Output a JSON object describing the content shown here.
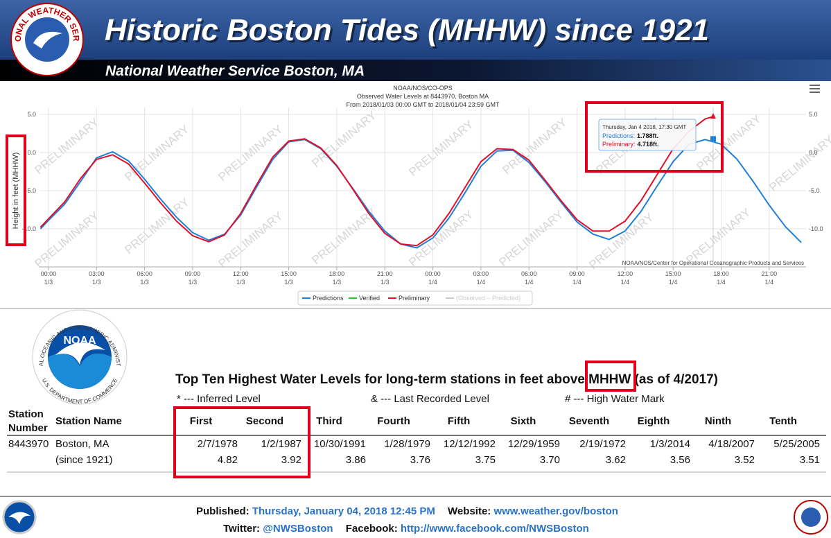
{
  "header": {
    "title": "Historic Boston Tides (MHHW) since 1921",
    "subtitle": "National Weather Service Boston, MA",
    "logo_text": "NATIONAL WEATHER SERVICE"
  },
  "chart_data": {
    "type": "line",
    "title": "NOAA/NOS/CO-OPS",
    "subtitle": [
      "Observed Water Levels at 8443970, Boston MA",
      "From 2018/01/03 00:00 GMT to 2018/01/04 23:59 GMT"
    ],
    "ylabel": "Height in feet (MHHW)",
    "watermark": "PRELIMINARY",
    "credit": "NOAA/NOS/Center for Operational Oceanographic Products and Services",
    "xlim": [
      -0.56,
      47.3
    ],
    "ylim": [
      -15,
      5
    ],
    "yticks": [
      {
        "value": 5,
        "label": "5.0"
      },
      {
        "value": 0,
        "label": "0.0"
      },
      {
        "value": -5,
        "label": "-5.0"
      },
      {
        "value": -10,
        "label": "-10.0"
      }
    ],
    "xticks": [
      {
        "value": 0,
        "label": "00:00",
        "sublabel": "1/3"
      },
      {
        "value": 3,
        "label": "03:00",
        "sublabel": "1/3"
      },
      {
        "value": 6,
        "label": "06:00",
        "sublabel": "1/3"
      },
      {
        "value": 9,
        "label": "09:00",
        "sublabel": "1/3"
      },
      {
        "value": 12,
        "label": "12:00",
        "sublabel": "1/3"
      },
      {
        "value": 15,
        "label": "15:00",
        "sublabel": "1/3"
      },
      {
        "value": 18,
        "label": "18:00",
        "sublabel": "1/3"
      },
      {
        "value": 21,
        "label": "21:00",
        "sublabel": "1/3"
      },
      {
        "value": 24,
        "label": "00:00",
        "sublabel": "1/4"
      },
      {
        "value": 27,
        "label": "03:00",
        "sublabel": "1/4"
      },
      {
        "value": 30,
        "label": "06:00",
        "sublabel": "1/4"
      },
      {
        "value": 33,
        "label": "09:00",
        "sublabel": "1/4"
      },
      {
        "value": 36,
        "label": "12:00",
        "sublabel": "1/4"
      },
      {
        "value": 39,
        "label": "15:00",
        "sublabel": "1/4"
      },
      {
        "value": 42,
        "label": "18:00",
        "sublabel": "1/4"
      },
      {
        "value": 45,
        "label": "21:00",
        "sublabel": "1/4"
      }
    ],
    "grid": true,
    "legend": "bottom",
    "series": [
      {
        "name": "Predictions",
        "color": "#1f7fd6",
        "x": [
          -0.5,
          0,
          1,
          2,
          3,
          4,
          5,
          6,
          7,
          8,
          9,
          10,
          11,
          12,
          13,
          14,
          15,
          16,
          17,
          18,
          19,
          20,
          21,
          22,
          23,
          24,
          25,
          26,
          27,
          28,
          29,
          30,
          31,
          32,
          33,
          34,
          35,
          36,
          37,
          38,
          39,
          40,
          41,
          42,
          43,
          44,
          45,
          46,
          47
        ],
        "values": [
          -10,
          -8.9,
          -6.8,
          -3.8,
          -0.7,
          0.1,
          -1.1,
          -3.5,
          -6.1,
          -8.5,
          -10.5,
          -11.5,
          -10.7,
          -8.2,
          -4.5,
          -0.9,
          1.4,
          1.7,
          0.5,
          -1.8,
          -4.7,
          -7.7,
          -10.3,
          -12,
          -12.5,
          -11.2,
          -8.6,
          -5.3,
          -1.8,
          0.2,
          0.3,
          -1.3,
          -3.8,
          -6.5,
          -9.1,
          -10.7,
          -11.4,
          -10.3,
          -7.7,
          -4.4,
          -1.2,
          1.1,
          1.7,
          1.1,
          -0.9,
          -3.8,
          -6.9,
          -9.7,
          -11.8
        ]
      },
      {
        "name": "Verified",
        "color": "#22c322"
      },
      {
        "name": "Preliminary",
        "color": "#e0102a",
        "x": [
          -0.5,
          0,
          1,
          2,
          3,
          4,
          5,
          6,
          7,
          8,
          9,
          10,
          11,
          12,
          13,
          14,
          15,
          16,
          17,
          18,
          19,
          20,
          21,
          22,
          23,
          24,
          25,
          26,
          27,
          28,
          29,
          30,
          31,
          32,
          33,
          34,
          35,
          36,
          37,
          38,
          39,
          40,
          41,
          41.5
        ],
        "values": [
          -9.8,
          -8.7,
          -6.5,
          -3.4,
          -0.9,
          -0.3,
          -1.5,
          -4.0,
          -6.6,
          -9.0,
          -10.9,
          -11.7,
          -10.8,
          -8.0,
          -4.2,
          -0.6,
          1.5,
          1.8,
          0.6,
          -1.7,
          -4.8,
          -8.0,
          -10.6,
          -12.0,
          -12.2,
          -10.8,
          -8.0,
          -4.6,
          -1.2,
          0.5,
          0.4,
          -1.0,
          -3.6,
          -6.3,
          -8.8,
          -10.3,
          -10.3,
          -9.0,
          -6.3,
          -2.9,
          0.5,
          2.8,
          4.4,
          4.718
        ]
      },
      {
        "name": "(Observed – Predicted)",
        "color": "#cccccc"
      }
    ],
    "tooltip": {
      "title": "Thursday, Jan 4 2018, 17:30 GMT",
      "x": 41.5,
      "items": [
        {
          "name": "Predictions:",
          "value": 1.788,
          "label": "1.788ft."
        },
        {
          "name": "Preliminary:",
          "value": 4.718,
          "label": "4.718ft."
        }
      ]
    }
  },
  "noaa_logo": {
    "top": "NATIONAL OCEANIC AND ATMOSPHERIC ADMINISTRATION",
    "bottom": "U.S. DEPARTMENT OF COMMERCE",
    "center": "NOAA"
  },
  "table": {
    "title": "Top Ten Highest Water Levels for long-term stations in feet above MHHW (as of 4/2017)",
    "notes": [
      "* --- Inferred Level",
      "& --- Last Recorded Level",
      "# --- High Water Mark"
    ],
    "station_number_header": [
      "Station",
      "Number"
    ],
    "station_name_header": "Station Name",
    "rank_headers": [
      "First",
      "Second",
      "Third",
      "Fourth",
      "Fifth",
      "Sixth",
      "Seventh",
      "Eighth",
      "Ninth",
      "Tenth"
    ],
    "rows": [
      {
        "station_number": "8443970",
        "station_name": "Boston, MA",
        "since": "(since 1921)",
        "dates": [
          "2/7/1978",
          "1/2/1987",
          "10/30/1991",
          "1/28/1979",
          "12/12/1992",
          "12/29/1959",
          "2/19/1972",
          "1/3/2014",
          "4/18/2007",
          "5/25/2005"
        ],
        "levels": [
          "4.82",
          "3.92",
          "3.86",
          "3.76",
          "3.75",
          "3.70",
          "3.62",
          "3.56",
          "3.52",
          "3.51"
        ]
      }
    ]
  },
  "footer": {
    "published_label": "Published:",
    "published": "Thursday, January 04, 2018 12:45 PM",
    "website_label": "Website:",
    "website": "www.weather.gov/boston",
    "twitter_label": "Twitter:",
    "twitter": "@NWSBoston",
    "facebook_label": "Facebook:",
    "facebook": "http://www.facebook.com/NWSBoston"
  }
}
